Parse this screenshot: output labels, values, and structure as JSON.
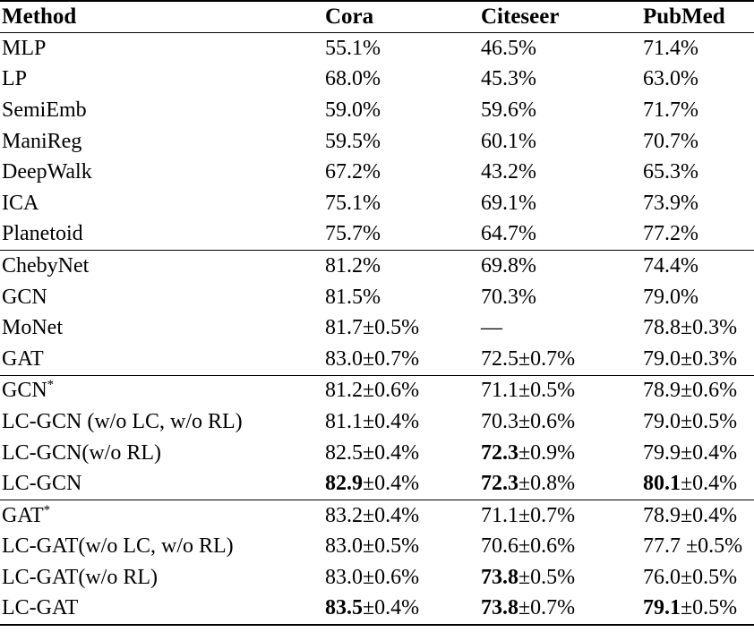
{
  "table": {
    "columns": [
      {
        "key": "method",
        "label": "Method"
      },
      {
        "key": "cora",
        "label": "Cora"
      },
      {
        "key": "citeseer",
        "label": "Citeseer"
      },
      {
        "key": "pubmed",
        "label": "PubMed"
      }
    ],
    "text_color": "#000000",
    "background_color": "#ffffff",
    "groups": [
      {
        "rows": [
          {
            "method": {
              "label": "MLP",
              "sup": ""
            },
            "cells": [
              {
                "v": "55.1%"
              },
              {
                "v": "46.5%"
              },
              {
                "v": "71.4%"
              }
            ]
          },
          {
            "method": {
              "label": "LP",
              "sup": ""
            },
            "cells": [
              {
                "v": "68.0%"
              },
              {
                "v": "45.3%"
              },
              {
                "v": "63.0%"
              }
            ]
          },
          {
            "method": {
              "label": "SemiEmb",
              "sup": ""
            },
            "cells": [
              {
                "v": "59.0%"
              },
              {
                "v": "59.6%"
              },
              {
                "v": "71.7%"
              }
            ]
          },
          {
            "method": {
              "label": "ManiReg",
              "sup": ""
            },
            "cells": [
              {
                "v": "59.5%"
              },
              {
                "v": "60.1%"
              },
              {
                "v": "70.7%"
              }
            ]
          },
          {
            "method": {
              "label": "DeepWalk",
              "sup": ""
            },
            "cells": [
              {
                "v": "67.2%"
              },
              {
                "v": "43.2%"
              },
              {
                "v": "65.3%"
              }
            ]
          },
          {
            "method": {
              "label": "ICA",
              "sup": ""
            },
            "cells": [
              {
                "v": "75.1%"
              },
              {
                "v": "69.1%"
              },
              {
                "v": "73.9%"
              }
            ]
          },
          {
            "method": {
              "label": "Planetoid",
              "sup": ""
            },
            "cells": [
              {
                "v": "75.7%"
              },
              {
                "v": "64.7%"
              },
              {
                "v": "77.2%"
              }
            ]
          }
        ]
      },
      {
        "rows": [
          {
            "method": {
              "label": "ChebyNet",
              "sup": ""
            },
            "cells": [
              {
                "v": "81.2%"
              },
              {
                "v": "69.8%"
              },
              {
                "v": "74.4%"
              }
            ]
          },
          {
            "method": {
              "label": "GCN",
              "sup": ""
            },
            "cells": [
              {
                "v": "81.5%"
              },
              {
                "v": "70.3%"
              },
              {
                "v": "79.0%"
              }
            ]
          },
          {
            "method": {
              "label": "MoNet",
              "sup": ""
            },
            "cells": [
              {
                "v": "81.7",
                "pm": "±0.5%"
              },
              {
                "v": "—"
              },
              {
                "v": "78.8",
                "pm": "±0.3%"
              }
            ]
          },
          {
            "method": {
              "label": "GAT",
              "sup": ""
            },
            "cells": [
              {
                "v": "83.0",
                "pm": "±0.7%"
              },
              {
                "v": "72.5",
                "pm": "±0.7%"
              },
              {
                "v": "79.0",
                "pm": "±0.3%"
              }
            ]
          }
        ]
      },
      {
        "rows": [
          {
            "method": {
              "label": "GCN",
              "sup": "*"
            },
            "cells": [
              {
                "v": "81.2",
                "pm": "±0.6%"
              },
              {
                "v": "71.1",
                "pm": "±0.5%"
              },
              {
                "v": "78.9",
                "pm": "±0.6%"
              }
            ]
          },
          {
            "method": {
              "label": "LC-GCN (w/o LC, w/o RL)",
              "sup": ""
            },
            "cells": [
              {
                "v": "81.1",
                "pm": "±0.4%"
              },
              {
                "v": "70.3",
                "pm": "±0.6%"
              },
              {
                "v": "79.0",
                "pm": "±0.5%"
              }
            ]
          },
          {
            "method": {
              "label": "LC-GCN(w/o RL)",
              "sup": ""
            },
            "cells": [
              {
                "v": "82.5",
                "pm": "±0.4%"
              },
              {
                "v": "72.3",
                "pm": "±0.9%",
                "bold": true
              },
              {
                "v": "79.9",
                "pm": "±0.4%"
              }
            ]
          },
          {
            "method": {
              "label": "LC-GCN",
              "sup": ""
            },
            "cells": [
              {
                "v": "82.9",
                "pm": "±0.4%",
                "bold": true
              },
              {
                "v": "72.3",
                "pm": "±0.8%",
                "bold": true
              },
              {
                "v": "80.1",
                "pm": "±0.4%",
                "bold": true
              }
            ]
          }
        ]
      },
      {
        "rows": [
          {
            "method": {
              "label": "GAT",
              "sup": "*"
            },
            "cells": [
              {
                "v": "83.2",
                "pm": "±0.4%"
              },
              {
                "v": "71.1",
                "pm": "±0.7%"
              },
              {
                "v": "78.9",
                "pm": "±0.4%"
              }
            ]
          },
          {
            "method": {
              "label": "LC-GAT(w/o LC, w/o RL)",
              "sup": ""
            },
            "cells": [
              {
                "v": "83.0",
                "pm": "±0.5%"
              },
              {
                "v": "70.6",
                "pm": "±0.6%"
              },
              {
                "v": "77.7",
                "pm": " ±0.5%"
              }
            ]
          },
          {
            "method": {
              "label": "LC-GAT(w/o RL)",
              "sup": ""
            },
            "cells": [
              {
                "v": "83.0",
                "pm": "±0.6%"
              },
              {
                "v": "73.8",
                "pm": "±0.5%",
                "bold": true
              },
              {
                "v": "76.0",
                "pm": "±0.5%"
              }
            ]
          },
          {
            "method": {
              "label": "LC-GAT",
              "sup": ""
            },
            "cells": [
              {
                "v": "83.5",
                "pm": "±0.4%",
                "bold": true
              },
              {
                "v": "73.8",
                "pm": "±0.7%",
                "bold": true
              },
              {
                "v": "79.1",
                "pm": "±0.5%",
                "bold": true
              }
            ]
          }
        ]
      }
    ]
  }
}
